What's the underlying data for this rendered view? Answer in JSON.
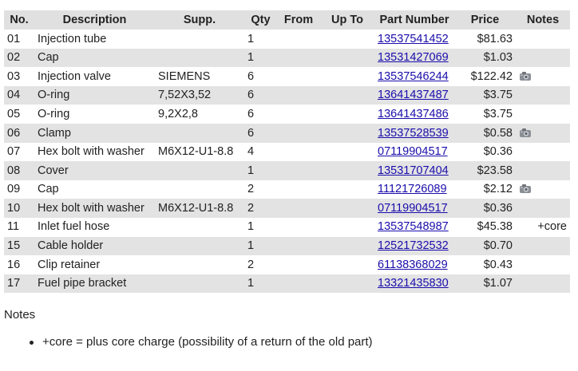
{
  "table": {
    "headers": {
      "no": "No.",
      "description": "Description",
      "supp": "Supp.",
      "qty": "Qty",
      "from": "From",
      "up_to": "Up To",
      "part_number": "Part Number",
      "price": "Price",
      "notes": "Notes"
    },
    "rows": [
      {
        "no": "01",
        "description": "Injection tube",
        "supp": "",
        "qty": "1",
        "from": "",
        "up_to": "",
        "part_number": "13537541452",
        "price": "$81.63",
        "camera": false,
        "notes": ""
      },
      {
        "no": "02",
        "description": "Cap",
        "supp": "",
        "qty": "1",
        "from": "",
        "up_to": "",
        "part_number": "13531427069",
        "price": "$1.03",
        "camera": false,
        "notes": ""
      },
      {
        "no": "03",
        "description": "Injection valve",
        "supp": "SIEMENS",
        "qty": "6",
        "from": "",
        "up_to": "",
        "part_number": "13537546244",
        "price": "$122.42",
        "camera": true,
        "notes": ""
      },
      {
        "no": "04",
        "description": "O-ring",
        "supp": "7,52X3,52",
        "qty": "6",
        "from": "",
        "up_to": "",
        "part_number": "13641437487",
        "price": "$3.75",
        "camera": false,
        "notes": ""
      },
      {
        "no": "05",
        "description": "O-ring",
        "supp": "9,2X2,8",
        "qty": "6",
        "from": "",
        "up_to": "",
        "part_number": "13641437486",
        "price": "$3.75",
        "camera": false,
        "notes": ""
      },
      {
        "no": "06",
        "description": "Clamp",
        "supp": "",
        "qty": "6",
        "from": "",
        "up_to": "",
        "part_number": "13537528539",
        "price": "$0.58",
        "camera": true,
        "notes": ""
      },
      {
        "no": "07",
        "description": "Hex bolt with washer",
        "supp": "M6X12-U1-8.8",
        "qty": "4",
        "from": "",
        "up_to": "",
        "part_number": "07119904517",
        "price": "$0.36",
        "camera": false,
        "notes": ""
      },
      {
        "no": "08",
        "description": "Cover",
        "supp": "",
        "qty": "1",
        "from": "",
        "up_to": "",
        "part_number": "13531707404",
        "price": "$23.58",
        "camera": false,
        "notes": ""
      },
      {
        "no": "09",
        "description": "Cap",
        "supp": "",
        "qty": "2",
        "from": "",
        "up_to": "",
        "part_number": "11121726089",
        "price": "$2.12",
        "camera": true,
        "notes": ""
      },
      {
        "no": "10",
        "description": "Hex bolt with washer",
        "supp": "M6X12-U1-8.8",
        "qty": "2",
        "from": "",
        "up_to": "",
        "part_number": "07119904517",
        "price": "$0.36",
        "camera": false,
        "notes": ""
      },
      {
        "no": "11",
        "description": "Inlet fuel hose",
        "supp": "",
        "qty": "1",
        "from": "",
        "up_to": "",
        "part_number": "13537548987",
        "price": "$45.38",
        "camera": false,
        "notes": "+core"
      },
      {
        "no": "15",
        "description": "Cable holder",
        "supp": "",
        "qty": "1",
        "from": "",
        "up_to": "",
        "part_number": "12521732532",
        "price": "$0.70",
        "camera": false,
        "notes": ""
      },
      {
        "no": "16",
        "description": "Clip retainer",
        "supp": "",
        "qty": "2",
        "from": "",
        "up_to": "",
        "part_number": "61138368029",
        "price": "$0.43",
        "camera": false,
        "notes": ""
      },
      {
        "no": "17",
        "description": "Fuel pipe bracket",
        "supp": "",
        "qty": "1",
        "from": "",
        "up_to": "",
        "part_number": "13321435830",
        "price": "$1.07",
        "camera": false,
        "notes": ""
      }
    ]
  },
  "notes_section": {
    "heading": "Notes",
    "items": [
      "+core = plus core charge (possibility of a return of the old part)"
    ]
  },
  "icons": {
    "camera": "camera-icon"
  },
  "colors": {
    "link": "#1a0dab",
    "stripe": "#e3e3e3",
    "header_bg": "#e0e0e0"
  }
}
